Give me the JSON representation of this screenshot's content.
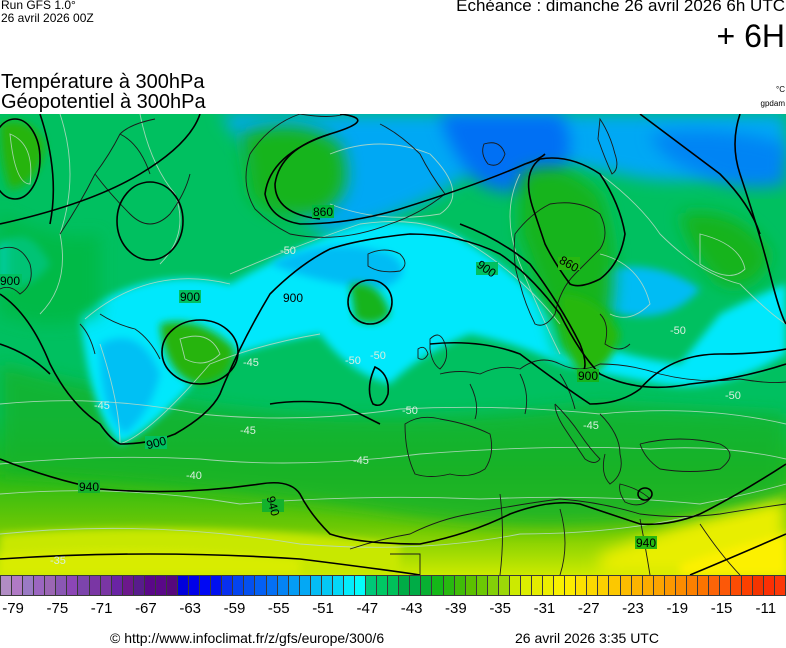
{
  "header": {
    "run_model": "Run GFS 1.0°",
    "run_date": "26 avril 2026 00Z",
    "echeance": "Echéance : dimanche 26 avril 2026 6h UTC",
    "lead_time": "+ 6H",
    "title_line1": "Température à 300hPa",
    "title_line2": "Géopotentiel à 300hPa",
    "unit_temperature": "°C",
    "unit_geopotential": "gpdam"
  },
  "map": {
    "region": "Europe / North Atlantic",
    "geopotential_contour_labels": [
      "860",
      "860",
      "900",
      "900",
      "900",
      "900",
      "900",
      "900",
      "940",
      "940",
      "940"
    ],
    "temperature_isoline_labels": [
      "-50",
      "-50",
      "-50",
      "-50",
      "-50",
      "-50",
      "-45",
      "-45",
      "-45",
      "-45",
      "-45",
      "-40",
      "-35"
    ]
  },
  "colorbar": {
    "min": -80,
    "max": -9,
    "step": 1,
    "tick_labels": [
      "-79",
      "-75",
      "-71",
      "-67",
      "-63",
      "-59",
      "-55",
      "-51",
      "-47",
      "-43",
      "-39",
      "-35",
      "-31",
      "-27",
      "-23",
      "-19",
      "-15",
      "-11"
    ],
    "colors": [
      "#b18cc4",
      "#b07ac5",
      "#9a7ac4",
      "#9b66c0",
      "#9b66b4",
      "#8a57b4",
      "#8c46b6",
      "#7c44ac",
      "#7a36a4",
      "#7a36a4",
      "#6a24a4",
      "#6c188c",
      "#581c8c",
      "#5a0888",
      "#5a0888",
      "#56087c",
      "#0000dc",
      "#0000e8",
      "#0008f4",
      "#0010f0",
      "#0830f0",
      "#0444f0",
      "#0450f0",
      "#0460f4",
      "#0470f4",
      "#0484f4",
      "#049cf4",
      "#04a8f4",
      "#04bcf4",
      "#04c8f4",
      "#04d8f8",
      "#04ecfc",
      "#04fcfc",
      "#00c878",
      "#00c864",
      "#00c05a",
      "#00ac46",
      "#00ac46",
      "#08b032",
      "#14b818",
      "#28b810",
      "#40bc08",
      "#5cc000",
      "#6cc804",
      "#84d008",
      "#9cd808",
      "#ccea00",
      "#dcee00",
      "#e4ec00",
      "#ecee00",
      "#f8f000",
      "#fcec00",
      "#fce000",
      "#fcd800",
      "#fcd000",
      "#fcc800",
      "#fcbc00",
      "#fcb400",
      "#fcac00",
      "#fca400",
      "#fc9800",
      "#fc8c00",
      "#fc8000",
      "#fc7400",
      "#fc6408",
      "#fc5808",
      "#fc4c04",
      "#fc4000",
      "#f43400",
      "#fc3004",
      "#fc3808"
    ]
  },
  "footer": {
    "copyright_url": "© http://www.infoclimat.fr/z/gfs/europe/300/6",
    "generated": "26 avril 2026  3:35 UTC"
  }
}
